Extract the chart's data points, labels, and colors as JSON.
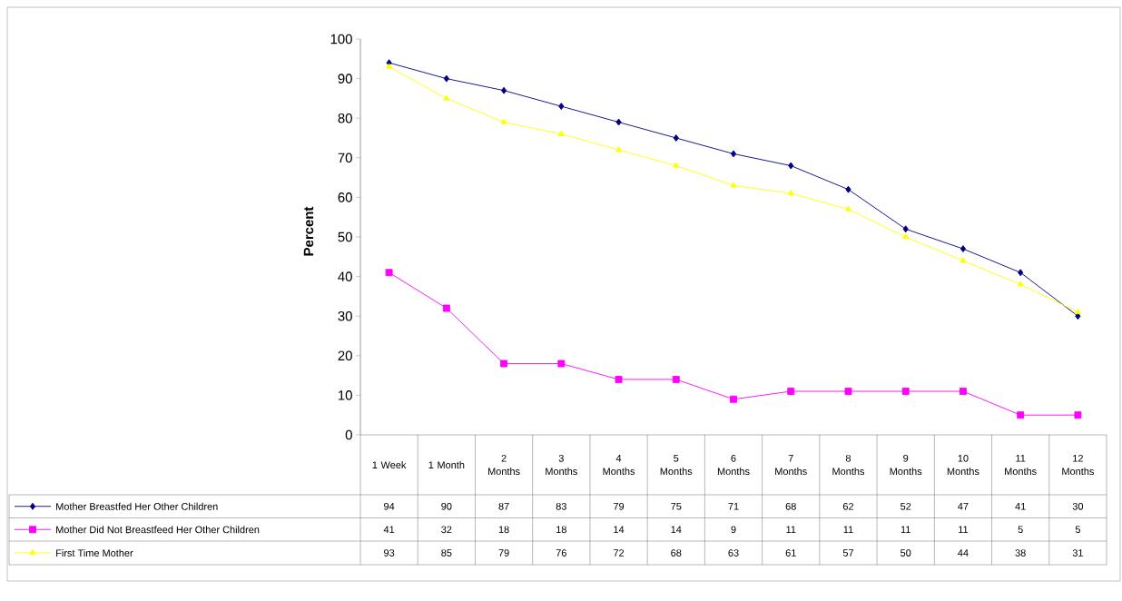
{
  "chart_data": {
    "type": "line",
    "ylabel": "Percent",
    "categories": [
      "1 Week",
      "1 Month",
      "2 Months",
      "3 Months",
      "4 Months",
      "5 Months",
      "6 Months",
      "7 Months",
      "8 Months",
      "9 Months",
      "10 Months",
      "11 Months",
      "12 Months"
    ],
    "series": [
      {
        "name": "Mother Breastfed Her Other Children",
        "color": "#000080",
        "marker": "diamond",
        "values": [
          94,
          90,
          87,
          83,
          79,
          75,
          71,
          68,
          62,
          52,
          47,
          41,
          30
        ]
      },
      {
        "name": "Mother Did Not Breastfeed Her Other Children",
        "color": "#ff00ff",
        "marker": "square",
        "values": [
          41,
          32,
          18,
          18,
          14,
          14,
          9,
          11,
          11,
          11,
          11,
          5,
          5
        ]
      },
      {
        "name": "First Time Mother",
        "color": "#ffff00",
        "marker": "triangle",
        "values": [
          93,
          85,
          79,
          76,
          72,
          68,
          63,
          61,
          57,
          50,
          44,
          38,
          31
        ]
      }
    ],
    "ylim": [
      0,
      100
    ],
    "yticks": [
      0,
      10,
      20,
      30,
      40,
      50,
      60,
      70,
      80,
      90,
      100
    ],
    "legend": "bottom",
    "data_labels": true,
    "line_style": "solid"
  }
}
